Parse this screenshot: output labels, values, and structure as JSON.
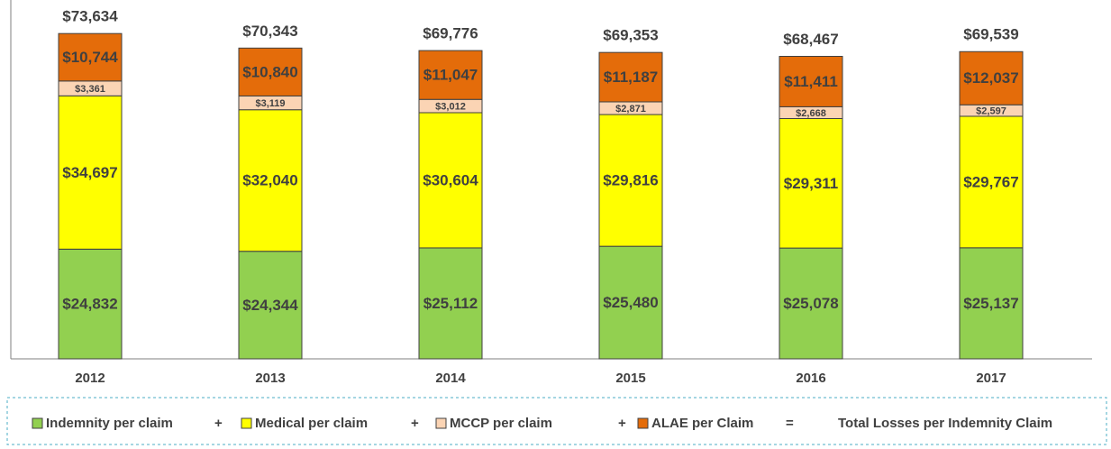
{
  "chart_data": {
    "type": "stacked_bar",
    "categories": [
      "2012",
      "2013",
      "2014",
      "2015",
      "2016",
      "2017"
    ],
    "series": [
      {
        "name": "Indemnity per claim",
        "color": "#92d050",
        "values": [
          24832,
          24344,
          25112,
          25480,
          25078,
          25137
        ],
        "value_labels": [
          "$24,832",
          "$24,344",
          "$25,112",
          "$25,480",
          "$25,078",
          "$25,137"
        ]
      },
      {
        "name": "Medical per claim",
        "color": "#ffff00",
        "values": [
          34697,
          32040,
          30604,
          29816,
          29311,
          29767
        ],
        "value_labels": [
          "$34,697",
          "$32,040",
          "$30,604",
          "$29,816",
          "$29,311",
          "$29,767"
        ]
      },
      {
        "name": "MCCP per claim",
        "color": "#fbd4b4",
        "values": [
          3361,
          3119,
          3012,
          2871,
          2668,
          2597
        ],
        "value_labels": [
          "$3,361",
          "$3,119",
          "$3,012",
          "$2,871",
          "$2,668",
          "$2,597"
        ]
      },
      {
        "name": "ALAE per Claim",
        "color": "#e46c0a",
        "values": [
          10744,
          10840,
          11047,
          11187,
          11411,
          12037
        ],
        "value_labels": [
          "$10,744",
          "$10,840",
          "$11,047",
          "$11,187",
          "$11,411",
          "$12,037"
        ]
      }
    ],
    "totals": {
      "name": "Total Losses per Indemnity Claim",
      "values": [
        73634,
        70343,
        69776,
        69353,
        68467,
        69539
      ],
      "value_labels": [
        "$73,634",
        "$70,343",
        "$69,776",
        "$69,353",
        "$68,467",
        "$69,539"
      ]
    },
    "legend_operators": [
      "+",
      "+",
      "+",
      "="
    ],
    "ylim": [
      0,
      80000
    ]
  }
}
